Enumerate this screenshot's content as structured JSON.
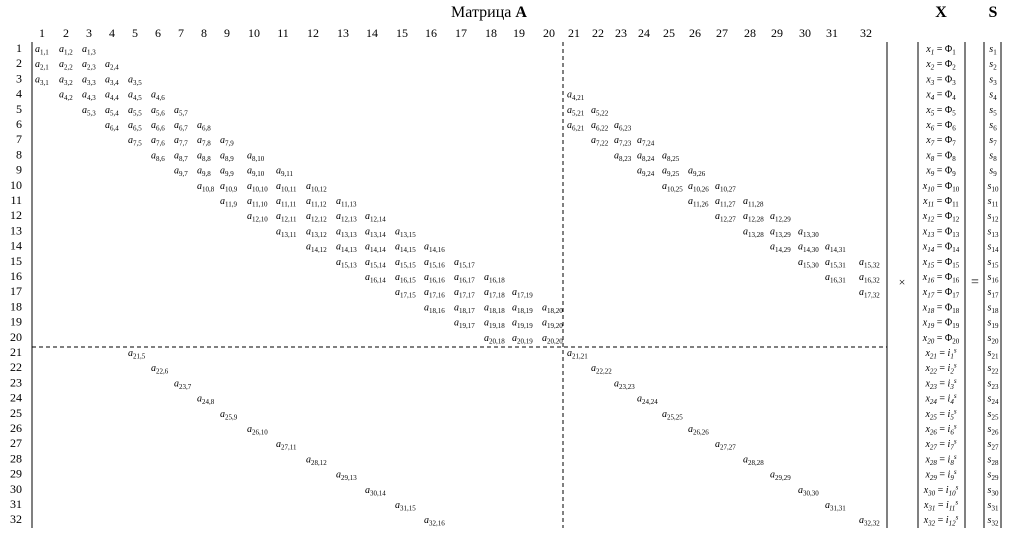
{
  "title": {
    "text": "Матрица",
    "bold_letter": "A"
  },
  "x_title": "X",
  "s_title": "S",
  "operators": {
    "times": "×",
    "equals": "="
  },
  "column_labels": [
    "1",
    "2",
    "3",
    "4",
    "5",
    "6",
    "7",
    "8",
    "9",
    "10",
    "11",
    "12",
    "13",
    "14",
    "15",
    "16",
    "17",
    "18",
    "19",
    "20",
    "21",
    "22",
    "23",
    "24",
    "25",
    "26",
    "27",
    "28",
    "29",
    "30",
    "31",
    "32"
  ],
  "row_labels": [
    "1",
    "2",
    "3",
    "4",
    "5",
    "6",
    "7",
    "8",
    "9",
    "10",
    "11",
    "12",
    "13",
    "14",
    "15",
    "16",
    "17",
    "18",
    "19",
    "20",
    "21",
    "22",
    "23",
    "24",
    "25",
    "26",
    "27",
    "28",
    "29",
    "30",
    "31",
    "32"
  ],
  "matrix_entries": [
    {
      "row": 1,
      "col": 1,
      "label": "a1,1"
    },
    {
      "row": 1,
      "col": 2,
      "label": "a1,2"
    },
    {
      "row": 1,
      "col": 3,
      "label": "a1,3"
    },
    {
      "row": 2,
      "col": 1,
      "label": "a2,1"
    },
    {
      "row": 2,
      "col": 2,
      "label": "a2,2"
    },
    {
      "row": 2,
      "col": 3,
      "label": "a2,3"
    },
    {
      "row": 2,
      "col": 4,
      "label": "a2,4"
    },
    {
      "row": 3,
      "col": 1,
      "label": "a3,1"
    },
    {
      "row": 3,
      "col": 2,
      "label": "a3,2"
    },
    {
      "row": 3,
      "col": 3,
      "label": "a3,3"
    },
    {
      "row": 3,
      "col": 4,
      "label": "a3,4"
    },
    {
      "row": 3,
      "col": 5,
      "label": "a3,5"
    },
    {
      "row": 4,
      "col": 2,
      "label": "a4,2"
    },
    {
      "row": 4,
      "col": 3,
      "label": "a4,3"
    },
    {
      "row": 4,
      "col": 4,
      "label": "a4,4"
    },
    {
      "row": 4,
      "col": 5,
      "label": "a4,5"
    },
    {
      "row": 4,
      "col": 6,
      "label": "a4,6"
    },
    {
      "row": 4,
      "col": 21,
      "label": "a4,21"
    },
    {
      "row": 5,
      "col": 3,
      "label": "a5,3"
    },
    {
      "row": 5,
      "col": 4,
      "label": "a5,4"
    },
    {
      "row": 5,
      "col": 5,
      "label": "a5,5"
    },
    {
      "row": 5,
      "col": 6,
      "label": "a5,6"
    },
    {
      "row": 5,
      "col": 7,
      "label": "a5,7"
    },
    {
      "row": 5,
      "col": 21,
      "label": "a5,21"
    },
    {
      "row": 5,
      "col": 22,
      "label": "a5,22"
    },
    {
      "row": 6,
      "col": 4,
      "label": "a6,4"
    },
    {
      "row": 6,
      "col": 5,
      "label": "a6,5"
    },
    {
      "row": 6,
      "col": 6,
      "label": "a6,6"
    },
    {
      "row": 6,
      "col": 7,
      "label": "a6,7"
    },
    {
      "row": 6,
      "col": 8,
      "label": "a6,8"
    },
    {
      "row": 6,
      "col": 21,
      "label": "a6,21"
    },
    {
      "row": 6,
      "col": 22,
      "label": "a6,22"
    },
    {
      "row": 6,
      "col": 23,
      "label": "a6,23"
    },
    {
      "row": 7,
      "col": 5,
      "label": "a7,5"
    },
    {
      "row": 7,
      "col": 6,
      "label": "a7,6"
    },
    {
      "row": 7,
      "col": 7,
      "label": "a7,7"
    },
    {
      "row": 7,
      "col": 8,
      "label": "a7,8"
    },
    {
      "row": 7,
      "col": 9,
      "label": "a7,9"
    },
    {
      "row": 7,
      "col": 22,
      "label": "a7,22"
    },
    {
      "row": 7,
      "col": 23,
      "label": "a7,23"
    },
    {
      "row": 7,
      "col": 24,
      "label": "a7,24"
    },
    {
      "row": 8,
      "col": 6,
      "label": "a8,6"
    },
    {
      "row": 8,
      "col": 7,
      "label": "a8,7"
    },
    {
      "row": 8,
      "col": 8,
      "label": "a8,8"
    },
    {
      "row": 8,
      "col": 9,
      "label": "a8,9"
    },
    {
      "row": 8,
      "col": 10,
      "label": "a8,10"
    },
    {
      "row": 8,
      "col": 23,
      "label": "a8,23"
    },
    {
      "row": 8,
      "col": 24,
      "label": "a8,24"
    },
    {
      "row": 8,
      "col": 25,
      "label": "a8,25"
    },
    {
      "row": 9,
      "col": 7,
      "label": "a9,7"
    },
    {
      "row": 9,
      "col": 8,
      "label": "a9,8"
    },
    {
      "row": 9,
      "col": 9,
      "label": "a9,9"
    },
    {
      "row": 9,
      "col": 10,
      "label": "a9,10"
    },
    {
      "row": 9,
      "col": 11,
      "label": "a9,11"
    },
    {
      "row": 9,
      "col": 24,
      "label": "a9,24"
    },
    {
      "row": 9,
      "col": 25,
      "label": "a9,25"
    },
    {
      "row": 9,
      "col": 26,
      "label": "a9,26"
    },
    {
      "row": 10,
      "col": 8,
      "label": "a10,8"
    },
    {
      "row": 10,
      "col": 9,
      "label": "a10,9"
    },
    {
      "row": 10,
      "col": 10,
      "label": "a10,10"
    },
    {
      "row": 10,
      "col": 11,
      "label": "a10,11"
    },
    {
      "row": 10,
      "col": 12,
      "label": "a10,12"
    },
    {
      "row": 10,
      "col": 25,
      "label": "a10,25"
    },
    {
      "row": 10,
      "col": 26,
      "label": "a10,26"
    },
    {
      "row": 10,
      "col": 27,
      "label": "a10,27"
    },
    {
      "row": 11,
      "col": 9,
      "label": "a11,9"
    },
    {
      "row": 11,
      "col": 10,
      "label": "a11,10"
    },
    {
      "row": 11,
      "col": 11,
      "label": "a11,11"
    },
    {
      "row": 11,
      "col": 12,
      "label": "a11,12"
    },
    {
      "row": 11,
      "col": 13,
      "label": "a11,13"
    },
    {
      "row": 11,
      "col": 26,
      "label": "a11,26"
    },
    {
      "row": 11,
      "col": 27,
      "label": "a11,27"
    },
    {
      "row": 11,
      "col": 28,
      "label": "a11,28"
    },
    {
      "row": 12,
      "col": 10,
      "label": "a12,10"
    },
    {
      "row": 12,
      "col": 11,
      "label": "a12,11"
    },
    {
      "row": 12,
      "col": 12,
      "label": "a12,12"
    },
    {
      "row": 12,
      "col": 13,
      "label": "a12,13"
    },
    {
      "row": 12,
      "col": 14,
      "label": "a12,14"
    },
    {
      "row": 12,
      "col": 27,
      "label": "a12,27"
    },
    {
      "row": 12,
      "col": 28,
      "label": "a12,28"
    },
    {
      "row": 12,
      "col": 29,
      "label": "a12,29"
    },
    {
      "row": 13,
      "col": 11,
      "label": "a13,11"
    },
    {
      "row": 13,
      "col": 12,
      "label": "a13,12"
    },
    {
      "row": 13,
      "col": 13,
      "label": "a13,13"
    },
    {
      "row": 13,
      "col": 14,
      "label": "a13,14"
    },
    {
      "row": 13,
      "col": 15,
      "label": "a13,15"
    },
    {
      "row": 13,
      "col": 28,
      "label": "a13,28"
    },
    {
      "row": 13,
      "col": 29,
      "label": "a13,29"
    },
    {
      "row": 13,
      "col": 30,
      "label": "a13,30"
    },
    {
      "row": 14,
      "col": 12,
      "label": "a14,12"
    },
    {
      "row": 14,
      "col": 13,
      "label": "a14,13"
    },
    {
      "row": 14,
      "col": 14,
      "label": "a14,14"
    },
    {
      "row": 14,
      "col": 15,
      "label": "a14,15"
    },
    {
      "row": 14,
      "col": 16,
      "label": "a14,16"
    },
    {
      "row": 14,
      "col": 29,
      "label": "a14,29"
    },
    {
      "row": 14,
      "col": 30,
      "label": "a14,30"
    },
    {
      "row": 14,
      "col": 31,
      "label": "a14,31"
    },
    {
      "row": 15,
      "col": 13,
      "label": "a15,13"
    },
    {
      "row": 15,
      "col": 14,
      "label": "a15,14"
    },
    {
      "row": 15,
      "col": 15,
      "label": "a15,15"
    },
    {
      "row": 15,
      "col": 16,
      "label": "a15,16"
    },
    {
      "row": 15,
      "col": 17,
      "label": "a15,17"
    },
    {
      "row": 15,
      "col": 30,
      "label": "a15,30"
    },
    {
      "row": 15,
      "col": 31,
      "label": "a15,31"
    },
    {
      "row": 15,
      "col": 32,
      "label": "a15,32"
    },
    {
      "row": 16,
      "col": 14,
      "label": "a16,14"
    },
    {
      "row": 16,
      "col": 15,
      "label": "a16,15"
    },
    {
      "row": 16,
      "col": 16,
      "label": "a16,16"
    },
    {
      "row": 16,
      "col": 17,
      "label": "a16,17"
    },
    {
      "row": 16,
      "col": 18,
      "label": "a16,18"
    },
    {
      "row": 16,
      "col": 31,
      "label": "a16,31"
    },
    {
      "row": 16,
      "col": 32,
      "label": "a16,32"
    },
    {
      "row": 17,
      "col": 15,
      "label": "a17,15"
    },
    {
      "row": 17,
      "col": 16,
      "label": "a17,16"
    },
    {
      "row": 17,
      "col": 17,
      "label": "a17,17"
    },
    {
      "row": 17,
      "col": 18,
      "label": "a17,18"
    },
    {
      "row": 17,
      "col": 19,
      "label": "a17,19"
    },
    {
      "row": 17,
      "col": 32,
      "label": "a17,32"
    },
    {
      "row": 18,
      "col": 16,
      "label": "a18,16"
    },
    {
      "row": 18,
      "col": 17,
      "label": "a18,17"
    },
    {
      "row": 18,
      "col": 18,
      "label": "a18,18"
    },
    {
      "row": 18,
      "col": 19,
      "label": "a18,19"
    },
    {
      "row": 18,
      "col": 20,
      "label": "a18,20"
    },
    {
      "row": 19,
      "col": 17,
      "label": "a19,17"
    },
    {
      "row": 19,
      "col": 18,
      "label": "a19,18"
    },
    {
      "row": 19,
      "col": 19,
      "label": "a19,19"
    },
    {
      "row": 19,
      "col": 20,
      "label": "a19,20"
    },
    {
      "row": 20,
      "col": 18,
      "label": "a20,18"
    },
    {
      "row": 20,
      "col": 19,
      "label": "a20,19"
    },
    {
      "row": 20,
      "col": 20,
      "label": "a20,20"
    },
    {
      "row": 21,
      "col": 5,
      "label": "a21,5"
    },
    {
      "row": 21,
      "col": 21,
      "label": "a21,21"
    },
    {
      "row": 22,
      "col": 6,
      "label": "a22,6"
    },
    {
      "row": 22,
      "col": 22,
      "label": "a22,22"
    },
    {
      "row": 23,
      "col": 7,
      "label": "a23,7"
    },
    {
      "row": 23,
      "col": 23,
      "label": "a23,23"
    },
    {
      "row": 24,
      "col": 8,
      "label": "a24,8"
    },
    {
      "row": 24,
      "col": 24,
      "label": "a24,24"
    },
    {
      "row": 25,
      "col": 9,
      "label": "a25,9"
    },
    {
      "row": 25,
      "col": 25,
      "label": "a25,25"
    },
    {
      "row": 26,
      "col": 10,
      "label": "a26,10"
    },
    {
      "row": 26,
      "col": 26,
      "label": "a26,26"
    },
    {
      "row": 27,
      "col": 11,
      "label": "a27,11"
    },
    {
      "row": 27,
      "col": 27,
      "label": "a27,27"
    },
    {
      "row": 28,
      "col": 12,
      "label": "a28,12"
    },
    {
      "row": 28,
      "col": 28,
      "label": "a28,28"
    },
    {
      "row": 29,
      "col": 13,
      "label": "a29,13"
    },
    {
      "row": 29,
      "col": 29,
      "label": "a29,29"
    },
    {
      "row": 30,
      "col": 14,
      "label": "a30,14"
    },
    {
      "row": 30,
      "col": 30,
      "label": "a30,30"
    },
    {
      "row": 31,
      "col": 15,
      "label": "a31,15"
    },
    {
      "row": 31,
      "col": 31,
      "label": "a31,31"
    },
    {
      "row": 32,
      "col": 16,
      "label": "a32,16"
    },
    {
      "row": 32,
      "col": 32,
      "label": "a32,32"
    }
  ],
  "x_vector": [
    "x1 = Φ1",
    "x2 = Φ2",
    "x3 = Φ3",
    "x4 = Φ4",
    "x5 = Φ5",
    "x6 = Φ6",
    "x7 = Φ7",
    "x8 = Φ8",
    "x9 = Φ9",
    "x10 = Φ10",
    "x11 = Φ11",
    "x12 = Φ12",
    "x13 = Φ13",
    "x14 = Φ14",
    "x15 = Φ15",
    "x16 = Φ16",
    "x17 = Φ17",
    "x18 = Φ18",
    "x19 = Φ19",
    "x20 = Φ20",
    "x21 = i1s",
    "x22 = i2s",
    "x23 = i3s",
    "x24 = i4s",
    "x25 = i5s",
    "x26 = i6s",
    "x27 = i7s",
    "x28 = i8s",
    "x29 = i9s",
    "x30 = i10s",
    "x31 = i11s",
    "x32 = i12s"
  ],
  "s_vector": [
    "s1",
    "s2",
    "s3",
    "s4",
    "s5",
    "s6",
    "s7",
    "s8",
    "s9",
    "s10",
    "s11",
    "s12",
    "s13",
    "s14",
    "s15",
    "s16",
    "s17",
    "s18",
    "s19",
    "s20",
    "s21",
    "s22",
    "s23",
    "s24",
    "s25",
    "s26",
    "s27",
    "s28",
    "s29",
    "s30",
    "s31",
    "s32"
  ]
}
